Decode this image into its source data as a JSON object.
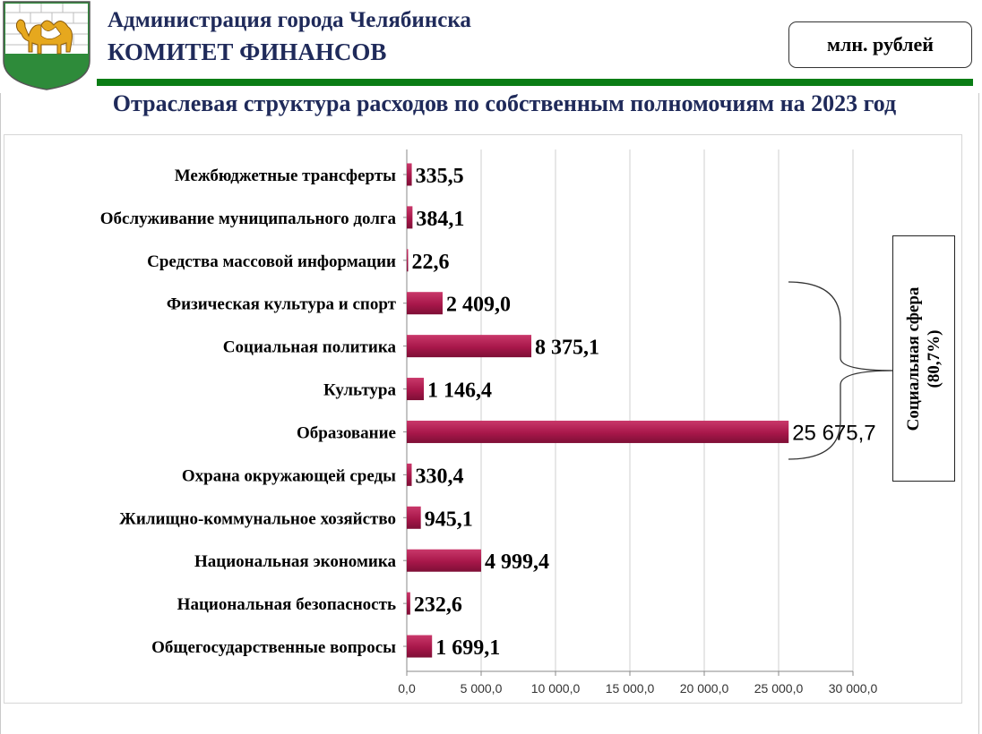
{
  "header": {
    "org_line1": "Администрация города Челябинска",
    "org_line2": "КОМИТЕТ ФИНАНСОВ",
    "unit": "млн. рублей",
    "accent_color": "#0a7d15",
    "title_color": "#1f2a5a"
  },
  "title": "Отраслевая структура расходов по собственным полномочиям на 2023 год",
  "annotation": {
    "line1": "Социальная сфера",
    "line2": "(80,7%)"
  },
  "chart_data": {
    "type": "bar",
    "orientation": "horizontal",
    "categories": [
      "Межбюджетные трансферты",
      "Обслуживание муниципального долга",
      "Средства массовой информации",
      "Физическая культура и спорт",
      "Социальная политика",
      "Культура",
      "Образование",
      "Охрана окружающей среды",
      "Жилищно-коммунальное хозяйство",
      "Национальная экономика",
      "Национальная безопасность",
      "Общегосударственные вопросы"
    ],
    "values": [
      335.5,
      384.1,
      22.6,
      2409.0,
      8375.1,
      1146.4,
      25675.7,
      330.4,
      945.1,
      4999.4,
      232.6,
      1699.1
    ],
    "value_labels": [
      "335,5",
      "384,1",
      "22,6",
      "2 409,0",
      "8 375,1",
      "1 146,4",
      "25 675,7",
      "330,4",
      "945,1",
      "4 999,4",
      "232,6",
      "1 699,1"
    ],
    "xlim": [
      0,
      30000
    ],
    "xticks": [
      0,
      5000,
      10000,
      15000,
      20000,
      25000,
      30000
    ],
    "xtick_labels": [
      "0,0",
      "5 000,0",
      "10 000,0",
      "15 000,0",
      "20 000,0",
      "25 000,0",
      "30 000,0"
    ],
    "bar_color": "#a8174a",
    "grid": "vertical",
    "legend": "none",
    "bracket_categories": [
      "Физическая культура и спорт",
      "Социальная политика",
      "Культура",
      "Образование"
    ]
  }
}
